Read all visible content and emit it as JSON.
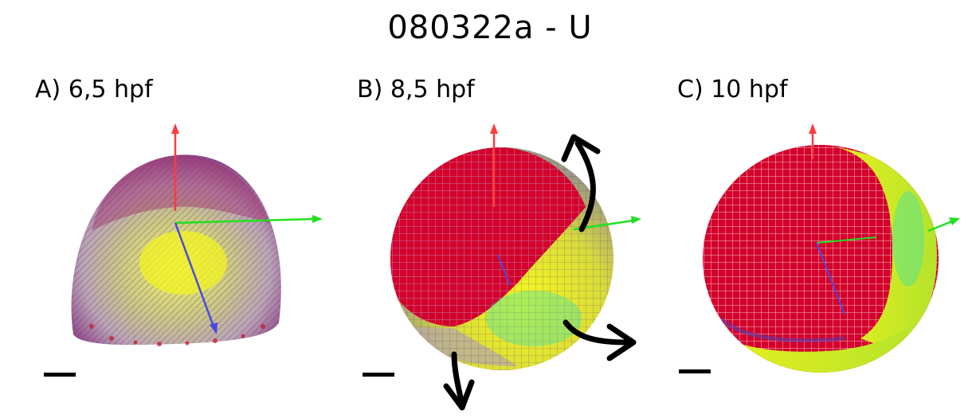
{
  "figure": {
    "title": "080322a - U",
    "panels": [
      {
        "id": "A",
        "label": "A) 6,5 hpf"
      },
      {
        "id": "B",
        "label": "B) 8,5 hpf"
      },
      {
        "id": "C",
        "label": "C) 10 hpf"
      }
    ]
  },
  "colors": {
    "red": "#d4002b",
    "yellow": "#e6ef1a",
    "cyan": "#22e0c8",
    "purple": "#5a3ea8",
    "axis_red": "#ff3b3b",
    "axis_green": "#22e022",
    "axis_blue": "#4a4adf",
    "arrow_black": "#000000"
  }
}
